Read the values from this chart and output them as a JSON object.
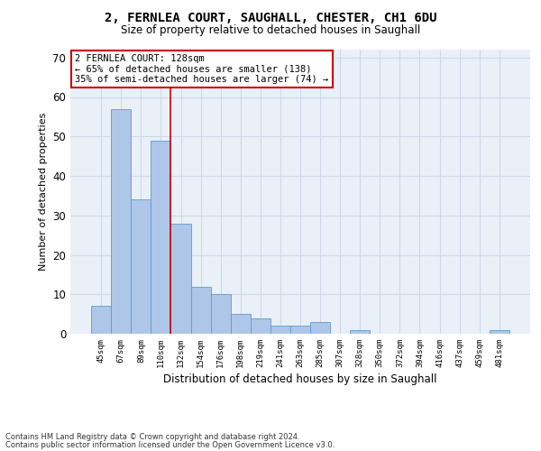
{
  "title_line1": "2, FERNLEA COURT, SAUGHALL, CHESTER, CH1 6DU",
  "title_line2": "Size of property relative to detached houses in Saughall",
  "xlabel": "Distribution of detached houses by size in Saughall",
  "ylabel": "Number of detached properties",
  "footnote1": "Contains HM Land Registry data © Crown copyright and database right 2024.",
  "footnote2": "Contains public sector information licensed under the Open Government Licence v3.0.",
  "annotation_line1": "2 FERNLEA COURT: 128sqm",
  "annotation_line2": "← 65% of detached houses are smaller (138)",
  "annotation_line3": "35% of semi-detached houses are larger (74) →",
  "bar_color": "#aec6e8",
  "bar_edge_color": "#5b9bd5",
  "grid_color": "#d0d8e8",
  "bg_color": "#eaf0f8",
  "redline_color": "#cc0000",
  "categories": [
    "45sqm",
    "67sqm",
    "89sqm",
    "110sqm",
    "132sqm",
    "154sqm",
    "176sqm",
    "198sqm",
    "219sqm",
    "241sqm",
    "263sqm",
    "285sqm",
    "307sqm",
    "328sqm",
    "350sqm",
    "372sqm",
    "394sqm",
    "416sqm",
    "437sqm",
    "459sqm",
    "481sqm"
  ],
  "values": [
    7,
    57,
    34,
    49,
    28,
    12,
    10,
    5,
    4,
    2,
    2,
    3,
    0,
    1,
    0,
    0,
    0,
    0,
    0,
    0,
    1
  ],
  "redline_x": 3.5,
  "ylim": [
    0,
    72
  ],
  "yticks": [
    0,
    10,
    20,
    30,
    40,
    50,
    60,
    70
  ]
}
